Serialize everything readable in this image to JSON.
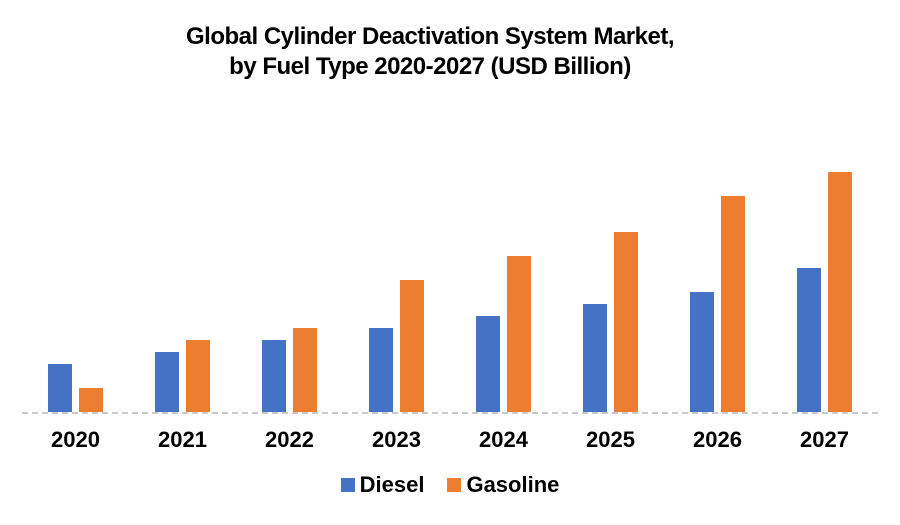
{
  "title": {
    "line1": "Global Cylinder Deactivation System Market,",
    "line2": "by Fuel Type 2020-2027 (USD Billion)"
  },
  "chart_data": {
    "type": "bar",
    "title": "Global Cylinder Deactivation System Market, by Fuel Type 2020-2027 (USD Billion)",
    "categories": [
      "2020",
      "2021",
      "2022",
      "2023",
      "2024",
      "2025",
      "2026",
      "2027"
    ],
    "series": [
      {
        "name": "Diesel",
        "color": "#4472C4",
        "values": [
          1.2,
          1.5,
          1.8,
          2.1,
          2.4,
          2.7,
          3.0,
          3.6
        ]
      },
      {
        "name": "Gasoline",
        "color": "#ED7D31",
        "values": [
          0.6,
          1.8,
          2.1,
          3.3,
          3.9,
          4.5,
          5.4,
          6.0
        ]
      }
    ],
    "ylabel": "USD Billion",
    "ylim": [
      0,
      6.2
    ],
    "value_axis_visible": false,
    "grid": false,
    "legend_position": "bottom",
    "axis_line_color": "#C9C9C9",
    "background_color": "#FFFFFF",
    "text_color": "#000000"
  }
}
